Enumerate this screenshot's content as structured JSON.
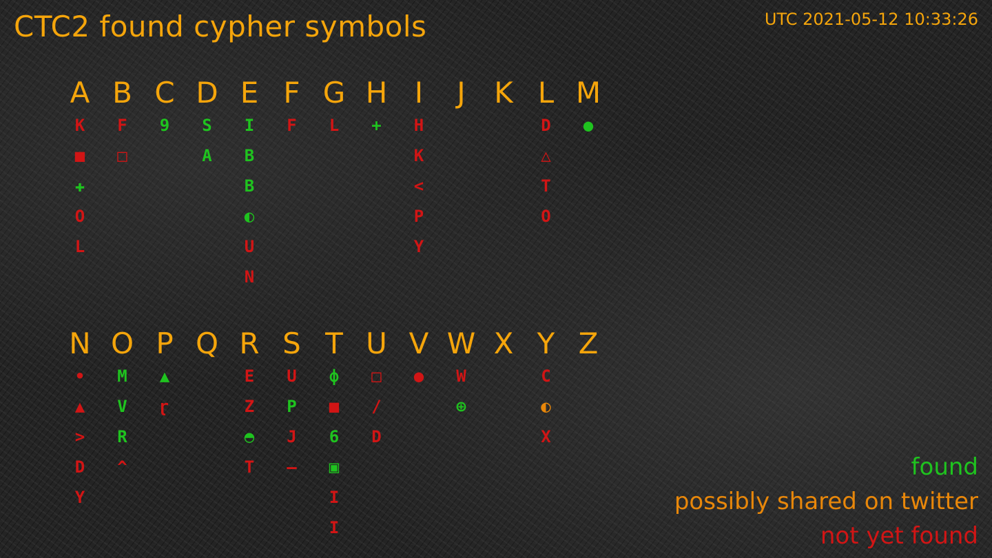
{
  "title": "CTC2 found cypher symbols",
  "timestamp": "UTC 2021-05-12 10:33:26",
  "colors": {
    "found": "#1fc31f",
    "possible": "#e8870a",
    "not_found": "#d11515",
    "accent": "#f5a50b"
  },
  "legend": {
    "found": "found",
    "possible": "possibly shared on twitter",
    "not_found": "not yet found"
  },
  "rows": [
    [
      {
        "letter": "A",
        "symbols": [
          {
            "glyph": "K",
            "status": "not_found"
          },
          {
            "glyph": "■",
            "status": "not_found"
          },
          {
            "glyph": "✚",
            "status": "found"
          },
          {
            "glyph": "O",
            "status": "not_found"
          },
          {
            "glyph": "L",
            "status": "not_found"
          }
        ]
      },
      {
        "letter": "B",
        "symbols": [
          {
            "glyph": "F",
            "status": "not_found"
          },
          {
            "glyph": "□",
            "status": "not_found"
          }
        ]
      },
      {
        "letter": "C",
        "symbols": [
          {
            "glyph": "9",
            "status": "found"
          }
        ]
      },
      {
        "letter": "D",
        "symbols": [
          {
            "glyph": "S",
            "status": "found"
          },
          {
            "glyph": "A",
            "status": "found"
          }
        ]
      },
      {
        "letter": "E",
        "symbols": [
          {
            "glyph": "I",
            "status": "found"
          },
          {
            "glyph": "B",
            "status": "found"
          },
          {
            "glyph": "B",
            "status": "found"
          },
          {
            "glyph": "◐",
            "status": "found"
          },
          {
            "glyph": "U",
            "status": "not_found"
          },
          {
            "glyph": "N",
            "status": "not_found"
          }
        ]
      },
      {
        "letter": "F",
        "symbols": [
          {
            "glyph": "F",
            "status": "not_found"
          }
        ]
      },
      {
        "letter": "G",
        "symbols": [
          {
            "glyph": "L",
            "status": "not_found"
          }
        ]
      },
      {
        "letter": "H",
        "symbols": [
          {
            "glyph": "+",
            "status": "found"
          }
        ]
      },
      {
        "letter": "I",
        "symbols": [
          {
            "glyph": "H",
            "status": "not_found"
          },
          {
            "glyph": "K",
            "status": "not_found"
          },
          {
            "glyph": "<",
            "status": "not_found"
          },
          {
            "glyph": "P",
            "status": "not_found"
          },
          {
            "glyph": "Y",
            "status": "not_found"
          }
        ]
      },
      {
        "letter": "J",
        "symbols": []
      },
      {
        "letter": "K",
        "symbols": []
      },
      {
        "letter": "L",
        "symbols": [
          {
            "glyph": "D",
            "status": "not_found"
          },
          {
            "glyph": "△",
            "status": "not_found"
          },
          {
            "glyph": "T",
            "status": "not_found"
          },
          {
            "glyph": "O",
            "status": "not_found"
          }
        ]
      },
      {
        "letter": "M",
        "symbols": [
          {
            "glyph": "●",
            "status": "found"
          }
        ]
      }
    ],
    [
      {
        "letter": "N",
        "symbols": [
          {
            "glyph": "•",
            "status": "not_found"
          },
          {
            "glyph": "▲",
            "status": "not_found"
          },
          {
            "glyph": ">",
            "status": "not_found"
          },
          {
            "glyph": "D",
            "status": "not_found"
          },
          {
            "glyph": "Y",
            "status": "not_found"
          }
        ]
      },
      {
        "letter": "O",
        "symbols": [
          {
            "glyph": "M",
            "status": "found"
          },
          {
            "glyph": "V",
            "status": "found"
          },
          {
            "glyph": "R",
            "status": "found"
          },
          {
            "glyph": "^",
            "status": "not_found"
          }
        ]
      },
      {
        "letter": "P",
        "symbols": [
          {
            "glyph": "▲",
            "status": "found"
          },
          {
            "glyph": "ɽ",
            "status": "not_found"
          }
        ]
      },
      {
        "letter": "Q",
        "symbols": []
      },
      {
        "letter": "R",
        "symbols": [
          {
            "glyph": "E",
            "status": "not_found"
          },
          {
            "glyph": "Z",
            "status": "not_found"
          },
          {
            "glyph": "◓",
            "status": "found"
          },
          {
            "glyph": "T",
            "status": "not_found"
          }
        ]
      },
      {
        "letter": "S",
        "symbols": [
          {
            "glyph": "U",
            "status": "not_found"
          },
          {
            "glyph": "P",
            "status": "found"
          },
          {
            "glyph": "J",
            "status": "not_found"
          },
          {
            "glyph": "–",
            "status": "not_found"
          }
        ]
      },
      {
        "letter": "T",
        "symbols": [
          {
            "glyph": "ф",
            "status": "found"
          },
          {
            "glyph": "■",
            "status": "not_found"
          },
          {
            "glyph": "6",
            "status": "found"
          },
          {
            "glyph": "▣",
            "status": "found"
          },
          {
            "glyph": "I",
            "status": "not_found"
          },
          {
            "glyph": "I",
            "status": "not_found"
          }
        ]
      },
      {
        "letter": "U",
        "symbols": [
          {
            "glyph": "□",
            "status": "not_found"
          },
          {
            "glyph": "/",
            "status": "not_found"
          },
          {
            "glyph": "D",
            "status": "not_found"
          }
        ]
      },
      {
        "letter": "V",
        "symbols": [
          {
            "glyph": "●",
            "status": "not_found"
          }
        ]
      },
      {
        "letter": "W",
        "symbols": [
          {
            "glyph": "W",
            "status": "not_found"
          },
          {
            "glyph": "⊕",
            "status": "found"
          }
        ]
      },
      {
        "letter": "X",
        "symbols": []
      },
      {
        "letter": "Y",
        "symbols": [
          {
            "glyph": "C",
            "status": "not_found"
          },
          {
            "glyph": "◐",
            "status": "possible"
          },
          {
            "glyph": "X",
            "status": "not_found"
          }
        ]
      },
      {
        "letter": "Z",
        "symbols": []
      }
    ]
  ]
}
